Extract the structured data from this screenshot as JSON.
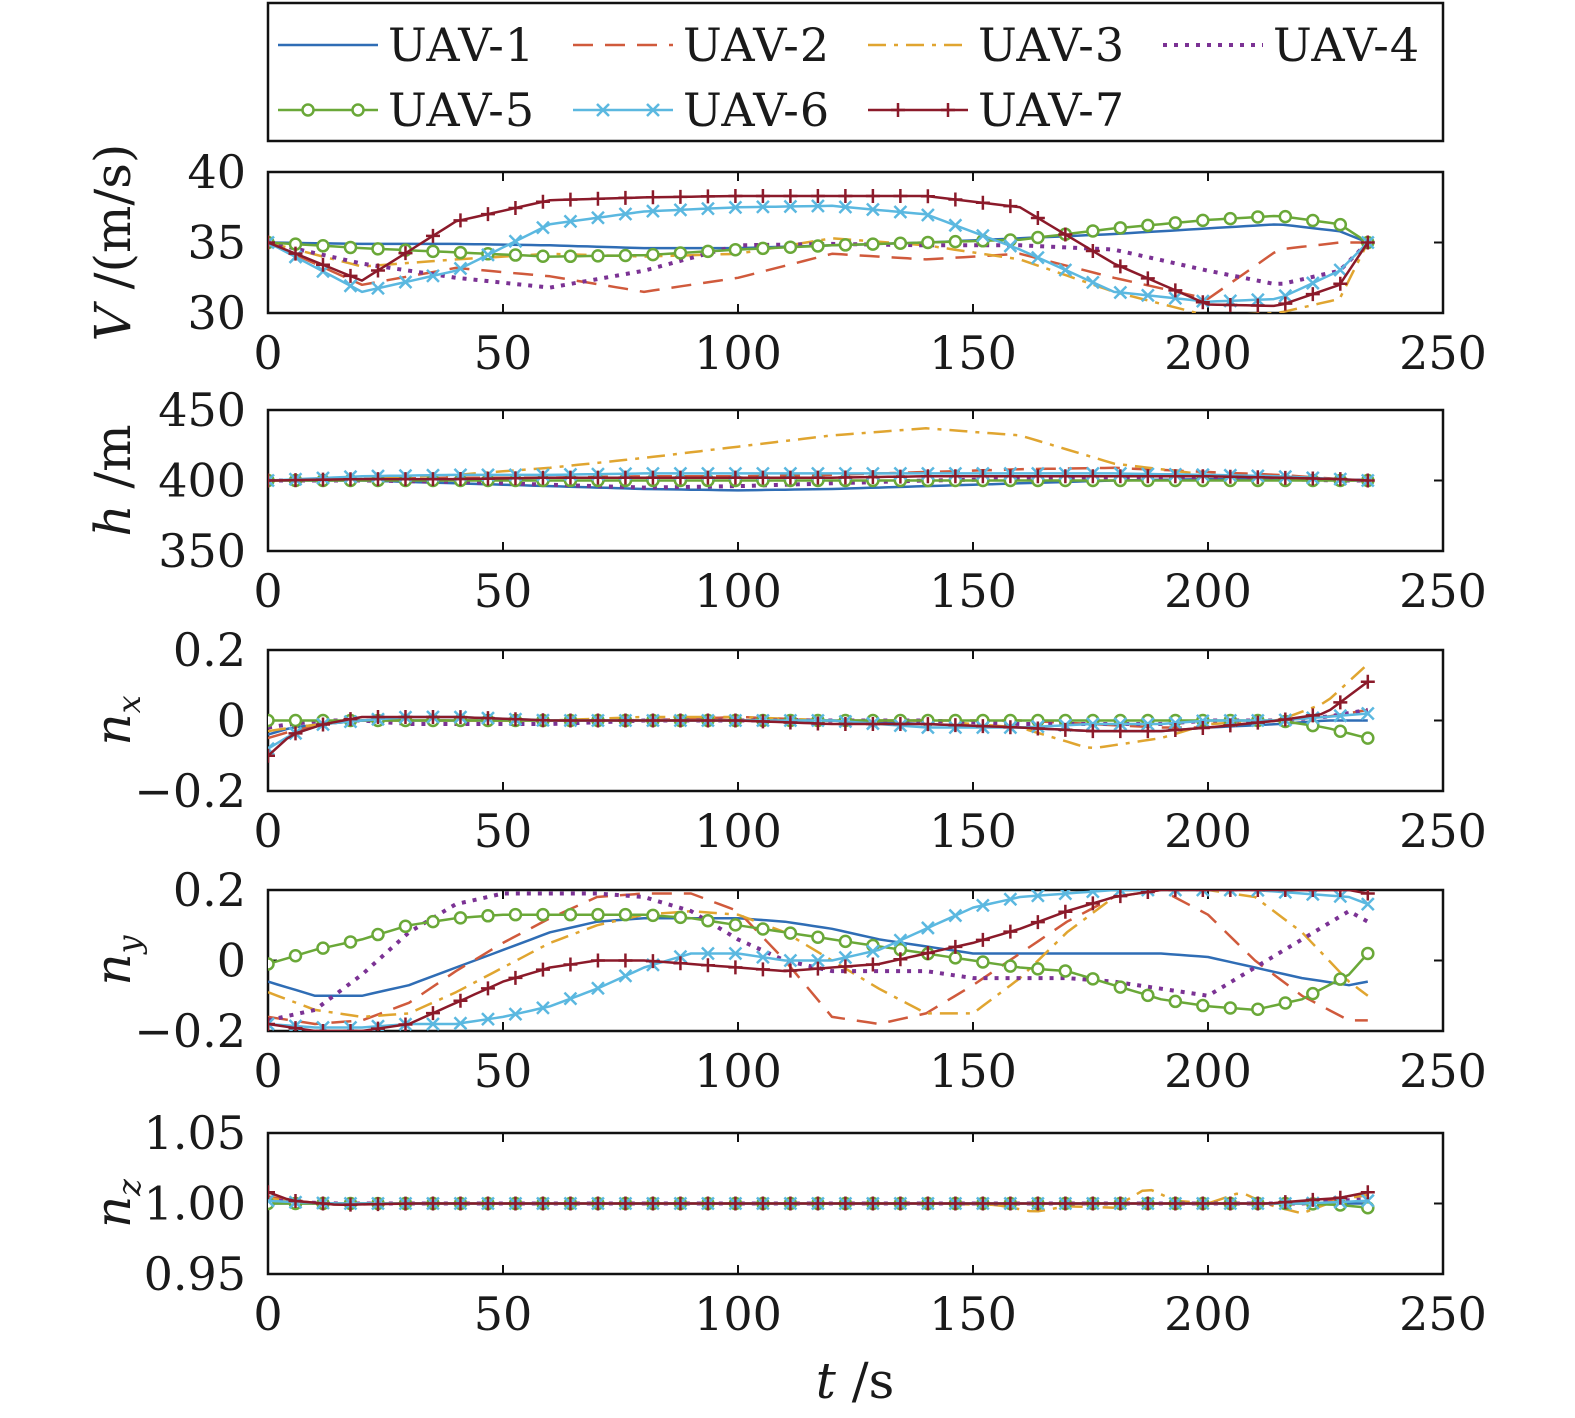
{
  "chart_data": [
    {
      "type": "line",
      "ylabel_symbol": "V",
      "ylabel_unit": " /(m/s)",
      "xlim": [
        0,
        250
      ],
      "ylim": [
        30,
        40
      ],
      "xticks": [
        "0",
        "50",
        "100",
        "150",
        "200",
        "250"
      ],
      "yticks": [
        "30",
        "35",
        "40"
      ],
      "ytick_values": [
        30,
        35,
        40
      ],
      "x": [
        0,
        20,
        40,
        60,
        80,
        100,
        120,
        140,
        160,
        180,
        200,
        215,
        228,
        234
      ],
      "series": [
        {
          "name": "UAV-1",
          "values": [
            35,
            34.9,
            34.9,
            34.8,
            34.6,
            34.6,
            34.8,
            35.0,
            35.3,
            35.6,
            36.0,
            36.3,
            35.8,
            35.0
          ]
        },
        {
          "name": "UAV-2",
          "values": [
            35,
            32.0,
            33.2,
            32.6,
            31.5,
            32.5,
            34.2,
            33.8,
            34.2,
            32.5,
            31.0,
            34.5,
            35.0,
            35.0
          ]
        },
        {
          "name": "UAV-3",
          "values": [
            35,
            33.3,
            33.8,
            34.2,
            34.0,
            34.2,
            35.3,
            34.8,
            33.8,
            31.5,
            29.8,
            30.0,
            31.0,
            35.0
          ]
        },
        {
          "name": "UAV-4",
          "values": [
            35,
            33.5,
            32.5,
            31.8,
            33.0,
            34.8,
            34.9,
            34.8,
            34.8,
            34.5,
            33.0,
            32.0,
            33.0,
            35.0
          ]
        },
        {
          "name": "UAV-5",
          "values": [
            35,
            34.6,
            34.3,
            34.0,
            34.1,
            34.5,
            34.8,
            35.0,
            35.2,
            36.0,
            36.6,
            36.9,
            36.3,
            35.0
          ]
        },
        {
          "name": "UAV-6",
          "values": [
            35,
            31.5,
            33.0,
            36.3,
            37.2,
            37.5,
            37.6,
            37.0,
            34.5,
            31.5,
            30.8,
            31.0,
            33.0,
            35.0
          ]
        },
        {
          "name": "UAV-7",
          "values": [
            35,
            32.3,
            36.5,
            38.0,
            38.2,
            38.3,
            38.3,
            38.3,
            37.5,
            33.5,
            30.6,
            30.5,
            32.0,
            35.0
          ]
        }
      ]
    },
    {
      "type": "line",
      "ylabel_symbol": "h",
      "ylabel_unit": " /m",
      "xlim": [
        0,
        250
      ],
      "ylim": [
        350,
        450
      ],
      "xticks": [
        "0",
        "50",
        "100",
        "150",
        "200",
        "250"
      ],
      "yticks": [
        "350",
        "400",
        "450"
      ],
      "ytick_values": [
        350,
        400,
        450
      ],
      "x": [
        0,
        20,
        40,
        60,
        80,
        100,
        120,
        140,
        160,
        180,
        200,
        215,
        228,
        234
      ],
      "series": [
        {
          "name": "UAV-1",
          "values": [
            400,
            400,
            398,
            396,
            394,
            393,
            394,
            396,
            398,
            400,
            401,
            401,
            400,
            400
          ]
        },
        {
          "name": "UAV-2",
          "values": [
            400,
            401,
            402,
            402,
            403,
            403,
            404,
            406,
            408,
            409,
            406,
            404,
            401,
            400
          ]
        },
        {
          "name": "UAV-3",
          "values": [
            400,
            401,
            404,
            409,
            416,
            424,
            432,
            437,
            432,
            412,
            404,
            402,
            400,
            400
          ]
        },
        {
          "name": "UAV-4",
          "values": [
            400,
            400,
            399,
            397,
            395,
            396,
            398,
            400,
            401,
            402,
            402,
            401,
            400,
            400
          ]
        },
        {
          "name": "UAV-5",
          "values": [
            400,
            400,
            400,
            400,
            400,
            400,
            400,
            400,
            400,
            400,
            400,
            400,
            400,
            400
          ]
        },
        {
          "name": "UAV-6",
          "values": [
            400,
            403,
            404,
            404,
            405,
            405,
            405,
            405,
            405,
            405,
            404,
            403,
            401,
            400
          ]
        },
        {
          "name": "UAV-7",
          "values": [
            400,
            401,
            401,
            402,
            402,
            402,
            402,
            403,
            403,
            403,
            403,
            402,
            401,
            400
          ]
        }
      ]
    },
    {
      "type": "line",
      "ylabel_symbol": "n",
      "ylabel_sub": "x",
      "xlim": [
        0,
        250
      ],
      "ylim": [
        -0.2,
        0.2
      ],
      "xticks": [
        "0",
        "50",
        "100",
        "150",
        "200",
        "250"
      ],
      "yticks": [
        "−0.2",
        "0",
        "0.2"
      ],
      "ytick_values": [
        -0.2,
        0,
        0.2
      ],
      "x": [
        0,
        5,
        12,
        20,
        30,
        40,
        60,
        80,
        100,
        120,
        140,
        160,
        175,
        190,
        200,
        215,
        225,
        234
      ],
      "series": [
        {
          "name": "UAV-1",
          "values": [
            -0.04,
            -0.02,
            -0.01,
            0.0,
            0.0,
            0.0,
            0.0,
            0.0,
            0.0,
            0.0,
            -0.01,
            -0.02,
            -0.03,
            -0.03,
            -0.02,
            -0.01,
            0.0,
            0.0
          ]
        },
        {
          "name": "UAV-2",
          "values": [
            -0.05,
            -0.03,
            -0.01,
            0.0,
            0.0,
            0.0,
            0.0,
            0.0,
            0.01,
            0.0,
            0.0,
            0.0,
            -0.01,
            -0.02,
            -0.02,
            0.0,
            0.01,
            0.03
          ]
        },
        {
          "name": "UAV-3",
          "values": [
            -0.03,
            -0.02,
            -0.01,
            0.0,
            0.0,
            0.0,
            0.0,
            0.01,
            0.01,
            0.0,
            0.0,
            -0.02,
            -0.08,
            -0.05,
            -0.01,
            0.0,
            0.05,
            0.16
          ]
        },
        {
          "name": "UAV-4",
          "values": [
            -0.02,
            -0.01,
            0.0,
            0.0,
            -0.01,
            -0.01,
            -0.01,
            0.0,
            0.0,
            0.0,
            0.0,
            -0.01,
            -0.01,
            -0.01,
            0.0,
            0.0,
            0.01,
            0.03
          ]
        },
        {
          "name": "UAV-5",
          "values": [
            0.0,
            0.0,
            0.0,
            0.0,
            0.0,
            0.0,
            0.0,
            0.0,
            0.0,
            0.0,
            0.0,
            0.0,
            0.0,
            0.0,
            0.0,
            0.0,
            -0.02,
            -0.05
          ]
        },
        {
          "name": "UAV-6",
          "values": [
            -0.08,
            -0.04,
            -0.01,
            0.0,
            0.01,
            0.01,
            0.0,
            0.0,
            0.0,
            0.0,
            -0.02,
            -0.02,
            -0.01,
            -0.01,
            0.0,
            0.0,
            0.01,
            0.02
          ]
        },
        {
          "name": "UAV-7",
          "values": [
            -0.1,
            -0.04,
            -0.01,
            0.01,
            0.01,
            0.01,
            0.0,
            0.0,
            0.0,
            -0.01,
            -0.01,
            -0.02,
            -0.03,
            -0.03,
            -0.02,
            0.0,
            0.02,
            0.11
          ]
        }
      ]
    },
    {
      "type": "line",
      "ylabel_symbol": "n",
      "ylabel_sub": "y",
      "xlim": [
        0,
        250
      ],
      "ylim": [
        -0.2,
        0.2
      ],
      "xticks": [
        "0",
        "50",
        "100",
        "150",
        "200",
        "250"
      ],
      "yticks": [
        "−0.2",
        "0",
        "0.2"
      ],
      "ytick_values": [
        -0.2,
        0,
        0.2
      ],
      "x": [
        0,
        10,
        20,
        30,
        40,
        50,
        60,
        70,
        80,
        90,
        100,
        110,
        120,
        130,
        140,
        150,
        160,
        170,
        180,
        190,
        200,
        210,
        220,
        230,
        234
      ],
      "series": [
        {
          "name": "UAV-1",
          "values": [
            -0.06,
            -0.1,
            -0.1,
            -0.07,
            -0.02,
            0.03,
            0.08,
            0.11,
            0.12,
            0.12,
            0.12,
            0.11,
            0.09,
            0.06,
            0.04,
            0.02,
            0.02,
            0.02,
            0.02,
            0.02,
            0.01,
            -0.02,
            -0.05,
            -0.07,
            -0.06
          ]
        },
        {
          "name": "UAV-2",
          "values": [
            -0.16,
            -0.18,
            -0.17,
            -0.12,
            -0.03,
            0.05,
            0.12,
            0.18,
            0.19,
            0.19,
            0.14,
            0.0,
            -0.16,
            -0.18,
            -0.15,
            -0.07,
            0.02,
            0.11,
            0.18,
            0.2,
            0.13,
            0.0,
            -0.1,
            -0.17,
            -0.17
          ]
        },
        {
          "name": "UAV-3",
          "values": [
            -0.09,
            -0.14,
            -0.16,
            -0.15,
            -0.09,
            -0.02,
            0.05,
            0.1,
            0.13,
            0.14,
            0.13,
            0.08,
            0.0,
            -0.08,
            -0.15,
            -0.15,
            -0.05,
            0.08,
            0.18,
            0.2,
            0.2,
            0.18,
            0.08,
            -0.06,
            -0.1
          ]
        },
        {
          "name": "UAV-4",
          "values": [
            -0.17,
            -0.14,
            -0.04,
            0.08,
            0.16,
            0.19,
            0.19,
            0.19,
            0.18,
            0.14,
            0.06,
            0.0,
            -0.03,
            -0.03,
            -0.03,
            -0.05,
            -0.05,
            -0.05,
            -0.06,
            -0.08,
            -0.1,
            -0.02,
            0.06,
            0.14,
            0.11
          ]
        },
        {
          "name": "UAV-5",
          "values": [
            -0.01,
            0.03,
            0.06,
            0.1,
            0.12,
            0.13,
            0.13,
            0.13,
            0.13,
            0.12,
            0.1,
            0.08,
            0.06,
            0.04,
            0.02,
            0.0,
            -0.02,
            -0.03,
            -0.07,
            -0.11,
            -0.13,
            -0.14,
            -0.11,
            -0.04,
            0.02
          ]
        },
        {
          "name": "UAV-6",
          "values": [
            -0.18,
            -0.19,
            -0.19,
            -0.18,
            -0.18,
            -0.16,
            -0.13,
            -0.08,
            -0.02,
            0.02,
            0.02,
            0.0,
            0.0,
            0.03,
            0.09,
            0.15,
            0.18,
            0.19,
            0.2,
            0.2,
            0.2,
            0.2,
            0.19,
            0.18,
            0.16
          ]
        },
        {
          "name": "UAV-7",
          "values": [
            -0.18,
            -0.2,
            -0.2,
            -0.18,
            -0.12,
            -0.06,
            -0.02,
            0.0,
            0.0,
            -0.01,
            -0.02,
            -0.03,
            -0.02,
            -0.01,
            0.02,
            0.05,
            0.09,
            0.14,
            0.18,
            0.2,
            0.2,
            0.2,
            0.2,
            0.2,
            0.19
          ]
        }
      ]
    },
    {
      "type": "line",
      "ylabel_symbol": "n",
      "ylabel_sub": "z",
      "xlim": [
        0,
        250
      ],
      "ylim": [
        0.95,
        1.05
      ],
      "xticks": [
        "0",
        "50",
        "100",
        "150",
        "200",
        "250"
      ],
      "yticks": [
        "0.95",
        "1.00",
        "1.05"
      ],
      "ytick_values": [
        0.95,
        1.0,
        1.05
      ],
      "x": [
        0,
        5,
        15,
        30,
        60,
        100,
        140,
        155,
        163,
        170,
        180,
        187,
        193,
        200,
        207,
        213,
        220,
        228,
        234
      ],
      "series": [
        {
          "name": "UAV-1",
          "values": [
            1.0,
            1.0,
            1.0,
            1.0,
            1.0,
            1.0,
            1.0,
            1.0,
            1.0,
            1.0,
            1.0,
            1.0,
            1.0,
            1.0,
            1.0,
            1.0,
            1.0,
            1.0,
            1.0
          ]
        },
        {
          "name": "UAV-2",
          "values": [
            1.005,
            1.002,
            0.999,
            1.0,
            1.0,
            1.0,
            1.0,
            1.0,
            1.0,
            1.0,
            1.0,
            1.0,
            1.0,
            1.0,
            1.0,
            1.0,
            1.0,
            1.003,
            1.006
          ]
        },
        {
          "name": "UAV-3",
          "values": [
            1.004,
            1.001,
            1.0,
            1.0,
            1.0,
            1.0,
            1.0,
            0.999,
            0.994,
            0.998,
            0.997,
            1.011,
            1.002,
            1.0,
            1.008,
            0.999,
            0.993,
            1.003,
            1.006
          ]
        },
        {
          "name": "UAV-4",
          "values": [
            1.003,
            1.001,
            1.0,
            1.0,
            1.0,
            1.0,
            1.0,
            1.0,
            1.0,
            1.0,
            1.0,
            1.0,
            1.0,
            1.0,
            1.0,
            1.0,
            1.0,
            1.002,
            1.003
          ]
        },
        {
          "name": "UAV-5",
          "values": [
            1.0,
            1.0,
            1.0,
            1.0,
            1.0,
            1.0,
            1.0,
            1.0,
            1.0,
            1.0,
            1.0,
            1.0,
            1.0,
            1.0,
            1.0,
            1.0,
            1.0,
            0.999,
            0.997
          ]
        },
        {
          "name": "UAV-6",
          "values": [
            1.002,
            1.001,
            1.0,
            1.0,
            1.0,
            1.0,
            1.0,
            1.0,
            1.0,
            1.0,
            1.0,
            1.0,
            1.0,
            1.0,
            1.0,
            1.0,
            1.0,
            1.001,
            1.002
          ]
        },
        {
          "name": "UAV-7",
          "values": [
            1.008,
            1.002,
            0.999,
            1.0,
            1.0,
            1.0,
            1.0,
            1.0,
            1.0,
            1.0,
            1.0,
            1.0,
            1.0,
            1.0,
            1.0,
            1.0,
            1.002,
            1.004,
            1.008
          ]
        }
      ]
    }
  ],
  "xlabel_symbol": "t",
  "xlabel_unit": " /s",
  "legend": [
    {
      "label": "UAV-1",
      "color": "#2f6db5",
      "dash": "",
      "marker": "none"
    },
    {
      "label": "UAV-2",
      "color": "#d05a3c",
      "dash": "dashed",
      "marker": "none"
    },
    {
      "label": "UAV-3",
      "color": "#e0a530",
      "dash": "dashdot",
      "marker": "none"
    },
    {
      "label": "UAV-4",
      "color": "#7b3294",
      "dash": "dotted",
      "marker": "none"
    },
    {
      "label": "UAV-5",
      "color": "#6aa838",
      "dash": "",
      "marker": "circle"
    },
    {
      "label": "UAV-6",
      "color": "#5bb8e0",
      "dash": "",
      "marker": "x"
    },
    {
      "label": "UAV-7",
      "color": "#8b1a2a",
      "dash": "",
      "marker": "plus"
    }
  ]
}
